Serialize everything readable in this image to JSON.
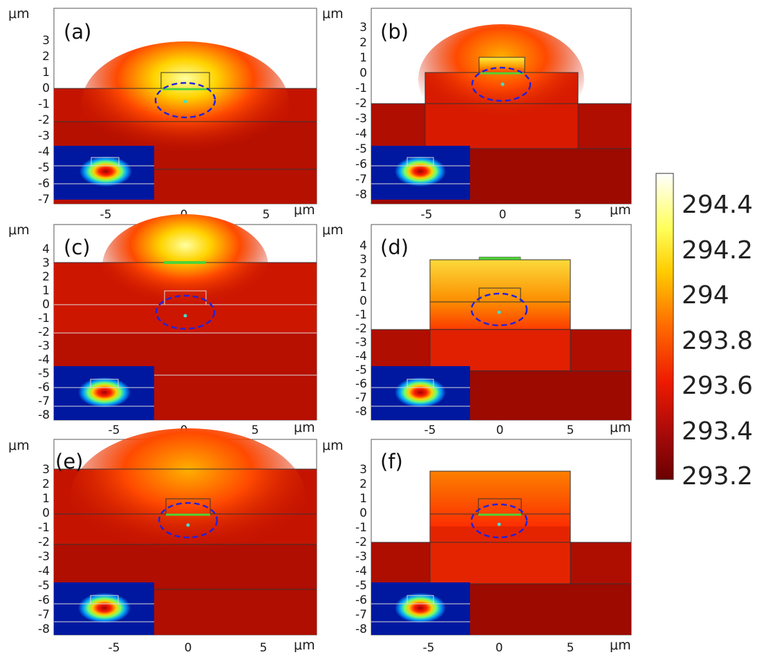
{
  "figure": {
    "unit_label": "μm",
    "colorbar": {
      "ticks": [
        "294.4",
        "294.2",
        "294",
        "293.8",
        "293.6",
        "293.4",
        "293.2"
      ],
      "colors": [
        "#ffffff",
        "#ffff00",
        "#ff8c00",
        "#ff1a00",
        "#a50a0a",
        "#6b0000"
      ]
    },
    "panels": [
      {
        "label": "(a)",
        "y_ticks": [
          "3",
          "2",
          "1",
          "0",
          "-1",
          "-2",
          "-3",
          "-4",
          "-5",
          "-6",
          "-7"
        ],
        "x_ticks": [
          "-5",
          "0",
          "5"
        ]
      },
      {
        "label": "(b)",
        "y_ticks": [
          "3",
          "2",
          "1",
          "0",
          "-1",
          "-2",
          "-3",
          "-4",
          "-5",
          "-6",
          "-7",
          "-8"
        ],
        "x_ticks": [
          "-5",
          "0",
          "5"
        ]
      },
      {
        "label": "(c)",
        "y_ticks": [
          "4",
          "3",
          "2",
          "1",
          "0",
          "-1",
          "-2",
          "-3",
          "-4",
          "-5",
          "-6",
          "-7",
          "-8"
        ],
        "x_ticks": [
          "-5",
          "0",
          "5"
        ]
      },
      {
        "label": "(d)",
        "y_ticks": [
          "4",
          "3",
          "2",
          "1",
          "0",
          "-1",
          "-2",
          "-3",
          "-4",
          "-5",
          "-6",
          "-7",
          "-8"
        ],
        "x_ticks": [
          "-5",
          "0",
          "5"
        ]
      },
      {
        "label": "(e)",
        "y_ticks": [
          "3",
          "2",
          "1",
          "0",
          "-1",
          "-2",
          "-3",
          "-4",
          "-5",
          "-6",
          "-7",
          "-8"
        ],
        "x_ticks": [
          "-5",
          "0",
          "5"
        ]
      },
      {
        "label": "(f)",
        "y_ticks": [
          "3",
          "2",
          "1",
          "0",
          "-1",
          "-2",
          "-3",
          "-4",
          "-5",
          "-6",
          "-7",
          "-8"
        ],
        "x_ticks": [
          "-5",
          "0",
          "5"
        ]
      }
    ]
  }
}
